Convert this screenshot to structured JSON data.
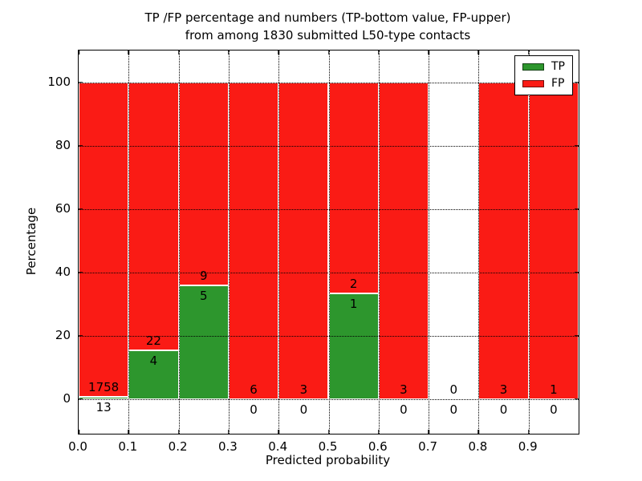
{
  "title": {
    "line1": "TP /FP percentage and numbers (TP-bottom value, FP-upper)",
    "line2": "from among 1830 submitted L50-type contacts"
  },
  "axes": {
    "xlabel": "Predicted probability",
    "ylabel": "Percentage"
  },
  "legend": {
    "tp_label": "TP",
    "fp_label": "FP"
  },
  "chart_data": {
    "type": "bar",
    "stacked": true,
    "unit": "percent_of_bin_total",
    "title": "TP /FP percentage and numbers (TP-bottom value, FP-upper) from among 1830 submitted L50-type contacts",
    "xlabel": "Predicted probability",
    "ylabel": "Percentage",
    "total_contacts": 1830,
    "xlim": [
      0.0,
      1.0
    ],
    "ylim": [
      -11,
      110
    ],
    "xticks": [
      0.0,
      0.1,
      0.2,
      0.3,
      0.4,
      0.5,
      0.6,
      0.7,
      0.8,
      0.9
    ],
    "xtick_labels": [
      "0.0",
      "0.1",
      "0.2",
      "0.3",
      "0.4",
      "0.5",
      "0.6",
      "0.7",
      "0.8",
      "0.9"
    ],
    "yticks": [
      0,
      20,
      40,
      60,
      80,
      100
    ],
    "ytick_labels": [
      "0",
      "20",
      "40",
      "60",
      "80",
      "100"
    ],
    "grid": true,
    "legend_position": "upper right",
    "bin_edges": [
      0.0,
      0.1,
      0.2,
      0.3,
      0.4,
      0.5,
      0.6,
      0.7,
      0.8,
      0.9,
      1.0
    ],
    "series": [
      {
        "name": "TP",
        "color": "#2d962d",
        "counts": [
          13,
          4,
          5,
          0,
          0,
          1,
          0,
          0,
          0,
          0
        ]
      },
      {
        "name": "FP",
        "color": "#fa1b15",
        "counts": [
          1758,
          22,
          9,
          6,
          3,
          2,
          3,
          0,
          3,
          1
        ]
      }
    ],
    "bar_edge_color": "#ffffff",
    "note": "Each bin bar is stacked to 100%; TP share = tp/(tp+fp). Bin 0.7-0.8 has no bar (0 contacts). TP count printed below the TP/FP boundary, FP count above it."
  }
}
